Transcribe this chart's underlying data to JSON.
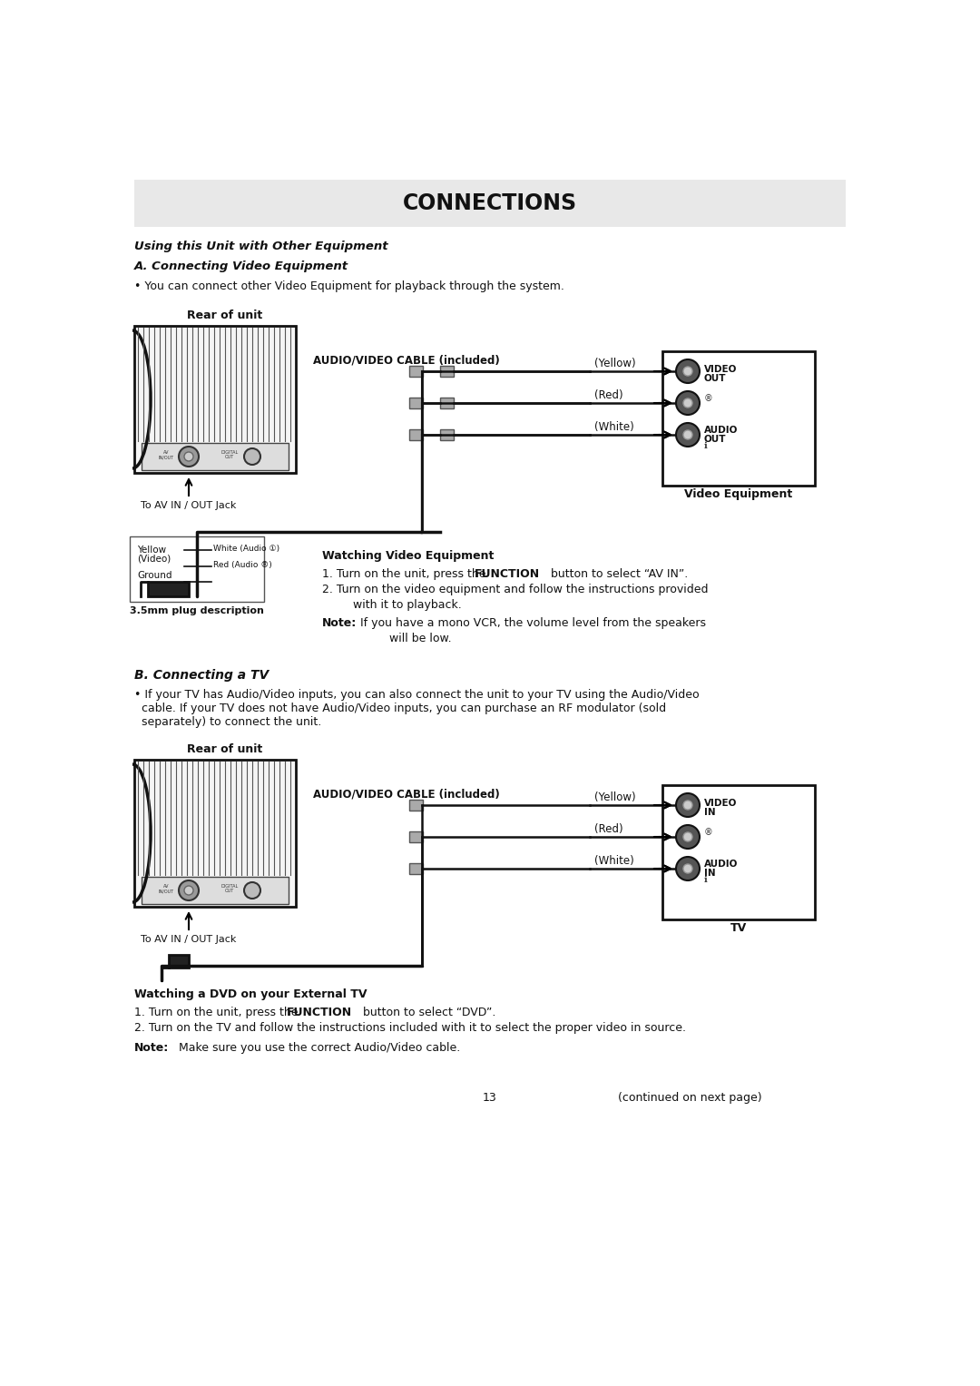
{
  "bg_color": "#ffffff",
  "title_bg": "#e8e8e8",
  "title_text": "CONNECTIONS",
  "section_heading": "Using this Unit with Other Equipment",
  "subsection_a": "A. Connecting Video Equipment",
  "bullet_a": "• You can connect other Video Equipment for playback through the system.",
  "rear_unit_label": "Rear of unit",
  "av_cable_label1": "AUDIO/VIDEO CABLE (included)",
  "av_cable_label2": "AUDIO/VIDEO CABLE (included)",
  "av_in_out_label1": "To AV IN / OUT Jack",
  "av_in_out_label2": "To AV IN / OUT Jack",
  "video_equip_label": "Video Equipment",
  "tv_label": "TV",
  "watching_video_heading": "Watching Video Equipment",
  "watching_video_1a": "1. Turn on the unit, press the ",
  "watching_video_1b": "FUNCTION",
  "watching_video_1c": " button to select “AV IN”.",
  "watching_video_2": "2. Turn on the video equipment and follow the instructions provided",
  "watching_video_2b": "    with it to playback.",
  "watching_video_note_bold": "Note:",
  "watching_video_note": " If you have a mono VCR, the volume level from the speakers",
  "watching_video_note2": "         will be low.",
  "plug_label": "3.5mm plug description",
  "plug_yellow": "Yellow",
  "plug_video": "(Video)",
  "plug_ground": "Ground",
  "plug_white_audio": "White (Audio ①)",
  "plug_red_audio": "Red (Audio ®)",
  "subsection_b": "B. Connecting a TV",
  "bullet_b1": "• If your TV has Audio/Video inputs, you can also connect the unit to your TV using the Audio/Video",
  "bullet_b2": "  cable. If your TV does not have Audio/Video inputs, you can purchase an RF modulator (sold",
  "bullet_b3": "  separately) to connect the unit.",
  "watching_dvd_heading": "Watching a DVD on your External TV",
  "watching_dvd_1a": "1. Turn on the unit, press the ",
  "watching_dvd_1b": "FUNCTION",
  "watching_dvd_1c": " button to select “DVD”.",
  "watching_dvd_2": "2. Turn on the TV and follow the instructions included with it to select the proper video in source.",
  "watching_dvd_note_bold": "Note:",
  "watching_dvd_note": " Make sure you use the correct Audio/Video cable.",
  "page_number": "13",
  "continued": "(continued on next page)",
  "yellow_label": "(Yellow)",
  "red_label": "(Red)",
  "white_label": "(White)",
  "video_out_label1": "VIDEO",
  "video_out_label2": "OUT",
  "audio_out_label1": "AUDIO",
  "audio_out_label2": "OUT",
  "video_in_label1": "VIDEO",
  "video_in_label2": "IN",
  "audio_in_label1": "AUDIO",
  "audio_in_label2": "IN",
  "circle_r_label": "®",
  "circle_l_label": "ℹ"
}
